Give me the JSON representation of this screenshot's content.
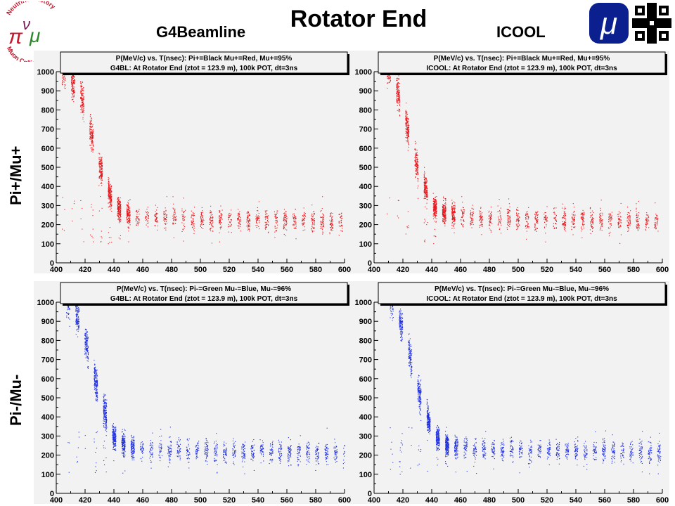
{
  "header": {
    "title": "Rotator End",
    "left_column": "G4Beamline",
    "right_column": "ICOOL",
    "row_top": "Pi+/Mu+",
    "row_bottom": "Pi-/Mu-"
  },
  "logos": {
    "left": {
      "name": "neutrino-factory-muon-collider-logo",
      "text_top": "Neutrino Factory",
      "text_bottom": "Muon Collider",
      "glyphs": "πνμ"
    },
    "mu": {
      "name": "muon-mu-logo",
      "glyph": "μ",
      "color": "#0b1f8f"
    },
    "fermilab": {
      "name": "fermilab-logo",
      "color": "#000000"
    }
  },
  "colors": {
    "red_series": "#e8161b",
    "blue_series": "#1f2fe0",
    "frame_bg": "#f2f2f2"
  },
  "chart_data": [
    {
      "type": "scatter",
      "title": "P(MeV/c) vs. T(nsec): Pi+=Black Mu+=Red, Mu+=95%",
      "subtitle": "G4BL: At Rotator End (ztot = 123.9 m), 100k POT, dt=3ns",
      "xlim": [
        400,
        600
      ],
      "ylim": [
        0,
        1000
      ],
      "xticks": [
        400,
        420,
        440,
        460,
        480,
        500,
        520,
        540,
        560,
        580,
        600
      ],
      "yticks": [
        0,
        100,
        200,
        300,
        400,
        500,
        600,
        700,
        800,
        900,
        1000
      ],
      "color": "#e8161b",
      "trend": {
        "x": [
          405,
          416,
          420,
          425,
          430,
          435,
          440,
          450,
          460,
          480,
          520,
          560,
          600
        ],
        "y": [
          1000,
          900,
          800,
          650,
          500,
          400,
          300,
          250,
          235,
          230,
          225,
          220,
          215
        ]
      },
      "bunch_spacing_ns": 6.4,
      "seed": 11
    },
    {
      "type": "scatter",
      "title": "P(MeV/c) vs. T(nsec): Pi+=Black Mu+=Red, Mu+=95%",
      "subtitle": "ICOOL: At Rotator End (ztot = 123.9 m), 100k POT, dt=3ns",
      "xlim": [
        400,
        600
      ],
      "ylim": [
        0,
        1000
      ],
      "xticks": [
        400,
        420,
        440,
        460,
        480,
        500,
        520,
        540,
        560,
        580,
        600
      ],
      "yticks": [
        0,
        100,
        200,
        300,
        400,
        500,
        600,
        700,
        800,
        900,
        1000
      ],
      "color": "#e8161b",
      "trend": {
        "x": [
          410,
          416,
          420,
          425,
          430,
          435,
          440,
          450,
          460,
          480,
          520,
          560,
          600
        ],
        "y": [
          1000,
          900,
          800,
          650,
          500,
          400,
          300,
          260,
          245,
          235,
          228,
          222,
          215
        ]
      },
      "bunch_spacing_ns": 6.4,
      "seed": 23
    },
    {
      "type": "scatter",
      "title": "P(MeV/c) vs. T(nsec): Pi-=Green Mu-=Blue, Mu-=96%",
      "subtitle": "G4BL: At Rotator End (ztot = 123.9 m), 100k POT, dt=3ns",
      "xlim": [
        400,
        600
      ],
      "ylim": [
        0,
        1000
      ],
      "xticks": [
        400,
        420,
        440,
        460,
        480,
        500,
        520,
        540,
        560,
        580,
        600
      ],
      "yticks": [
        0,
        100,
        200,
        300,
        400,
        500,
        600,
        700,
        800,
        900,
        1000
      ],
      "color": "#1f2fe0",
      "trend": {
        "x": [
          408,
          416,
          420,
          425,
          430,
          435,
          440,
          450,
          460,
          480,
          520,
          560,
          600
        ],
        "y": [
          1000,
          900,
          800,
          650,
          500,
          400,
          290,
          245,
          230,
          228,
          222,
          218,
          212
        ]
      },
      "bunch_spacing_ns": 6.4,
      "seed": 37
    },
    {
      "type": "scatter",
      "title": "P(MeV/c) vs. T(nsec): Pi-=Green Mu-=Blue, Mu-=96%",
      "subtitle": "ICOOL: At Rotator End (ztot = 123.9 m), 100k POT, dt=3ns",
      "xlim": [
        400,
        600
      ],
      "ylim": [
        0,
        1000
      ],
      "xticks": [
        400,
        420,
        440,
        460,
        480,
        500,
        520,
        540,
        560,
        580,
        600
      ],
      "yticks": [
        0,
        100,
        200,
        300,
        400,
        500,
        600,
        700,
        800,
        900,
        1000
      ],
      "color": "#1f2fe0",
      "trend": {
        "x": [
          412,
          418,
          422,
          427,
          432,
          437,
          442,
          450,
          460,
          480,
          520,
          560,
          600
        ],
        "y": [
          1000,
          900,
          800,
          650,
          500,
          400,
          300,
          255,
          240,
          230,
          225,
          220,
          215
        ]
      },
      "bunch_spacing_ns": 6.4,
      "seed": 53
    }
  ]
}
